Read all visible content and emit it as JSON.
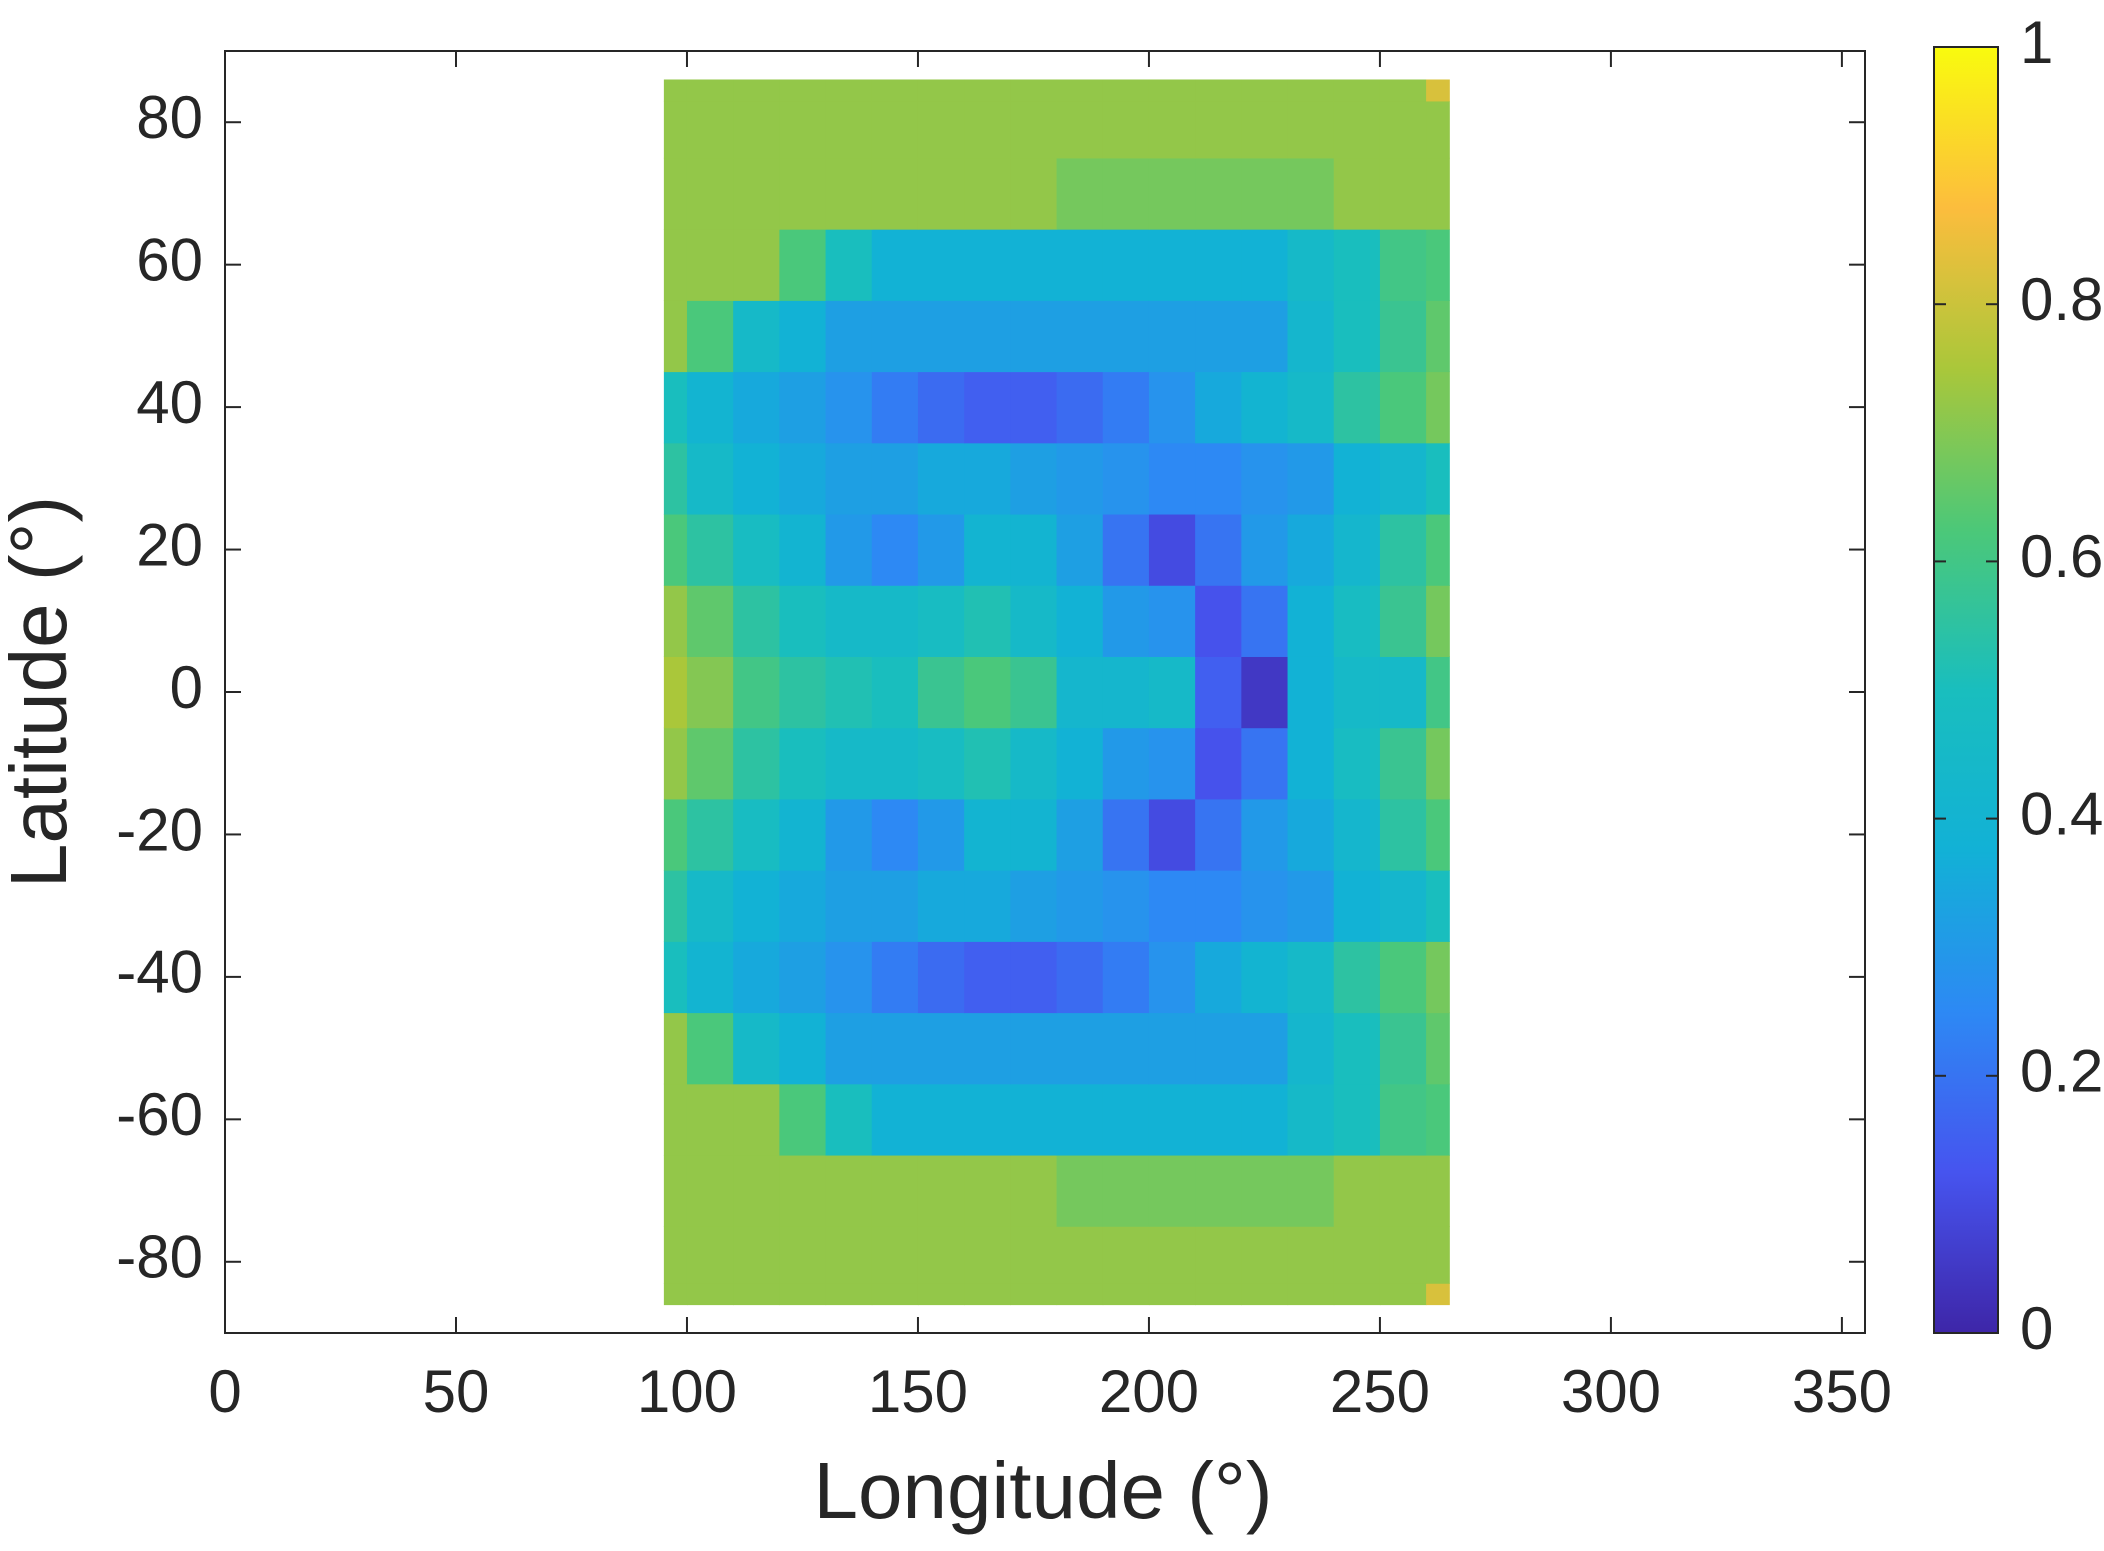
{
  "chart_data": {
    "type": "contourf",
    "xlabel": "Longitude (°)",
    "ylabel": "Latitude (°)",
    "x": [
      95,
      105,
      115,
      125,
      135,
      145,
      155,
      165,
      175,
      185,
      195,
      205,
      215,
      225,
      235,
      245,
      255,
      265
    ],
    "y": [
      -86,
      -80,
      -70,
      -60,
      -50,
      -40,
      -30,
      -20,
      -10,
      0,
      10,
      20,
      30,
      40,
      50,
      60,
      70,
      80,
      86
    ],
    "z": [
      [
        0.72,
        0.72,
        0.72,
        0.72,
        0.72,
        0.72,
        0.72,
        0.72,
        0.72,
        0.72,
        0.72,
        0.72,
        0.72,
        0.72,
        0.72,
        0.72,
        0.72,
        0.82
      ],
      [
        0.72,
        0.72,
        0.72,
        0.72,
        0.72,
        0.72,
        0.72,
        0.72,
        0.72,
        0.72,
        0.72,
        0.72,
        0.72,
        0.72,
        0.72,
        0.72,
        0.72,
        0.72
      ],
      [
        0.72,
        0.72,
        0.72,
        0.72,
        0.72,
        0.72,
        0.72,
        0.72,
        0.72,
        0.68,
        0.68,
        0.68,
        0.68,
        0.68,
        0.68,
        0.72,
        0.72,
        0.72
      ],
      [
        0.72,
        0.72,
        0.72,
        0.62,
        0.5,
        0.38,
        0.38,
        0.38,
        0.38,
        0.38,
        0.38,
        0.38,
        0.38,
        0.38,
        0.45,
        0.5,
        0.6,
        0.62
      ],
      [
        0.72,
        0.62,
        0.45,
        0.38,
        0.32,
        0.32,
        0.32,
        0.32,
        0.32,
        0.32,
        0.32,
        0.32,
        0.32,
        0.32,
        0.42,
        0.5,
        0.58,
        0.65
      ],
      [
        0.5,
        0.4,
        0.35,
        0.32,
        0.28,
        0.22,
        0.18,
        0.15,
        0.15,
        0.18,
        0.22,
        0.28,
        0.35,
        0.4,
        0.45,
        0.55,
        0.62,
        0.68
      ],
      [
        0.55,
        0.45,
        0.38,
        0.35,
        0.32,
        0.32,
        0.35,
        0.35,
        0.32,
        0.3,
        0.28,
        0.25,
        0.25,
        0.28,
        0.3,
        0.38,
        0.42,
        0.5
      ],
      [
        0.62,
        0.55,
        0.48,
        0.4,
        0.3,
        0.25,
        0.3,
        0.4,
        0.4,
        0.32,
        0.2,
        0.1,
        0.2,
        0.3,
        0.35,
        0.42,
        0.55,
        0.62
      ],
      [
        0.72,
        0.65,
        0.55,
        0.5,
        0.45,
        0.45,
        0.48,
        0.52,
        0.45,
        0.38,
        0.3,
        0.28,
        0.12,
        0.2,
        0.38,
        0.48,
        0.58,
        0.68
      ],
      [
        0.75,
        0.7,
        0.6,
        0.55,
        0.52,
        0.5,
        0.58,
        0.62,
        0.58,
        0.42,
        0.42,
        0.45,
        0.15,
        0.05,
        0.38,
        0.45,
        0.45,
        0.6
      ],
      [
        0.72,
        0.65,
        0.55,
        0.5,
        0.45,
        0.45,
        0.48,
        0.52,
        0.45,
        0.38,
        0.3,
        0.28,
        0.12,
        0.2,
        0.38,
        0.48,
        0.58,
        0.68
      ],
      [
        0.62,
        0.55,
        0.48,
        0.4,
        0.3,
        0.25,
        0.3,
        0.4,
        0.4,
        0.32,
        0.2,
        0.1,
        0.2,
        0.3,
        0.35,
        0.42,
        0.55,
        0.62
      ],
      [
        0.55,
        0.45,
        0.38,
        0.35,
        0.32,
        0.32,
        0.35,
        0.35,
        0.32,
        0.3,
        0.28,
        0.25,
        0.25,
        0.28,
        0.3,
        0.38,
        0.42,
        0.5
      ],
      [
        0.5,
        0.4,
        0.35,
        0.32,
        0.28,
        0.22,
        0.18,
        0.15,
        0.15,
        0.18,
        0.22,
        0.28,
        0.35,
        0.4,
        0.45,
        0.55,
        0.62,
        0.68
      ],
      [
        0.72,
        0.62,
        0.45,
        0.38,
        0.32,
        0.32,
        0.32,
        0.32,
        0.32,
        0.32,
        0.32,
        0.32,
        0.32,
        0.32,
        0.42,
        0.5,
        0.58,
        0.65
      ],
      [
        0.72,
        0.72,
        0.72,
        0.62,
        0.5,
        0.38,
        0.38,
        0.38,
        0.38,
        0.38,
        0.38,
        0.38,
        0.38,
        0.38,
        0.45,
        0.5,
        0.6,
        0.62
      ],
      [
        0.72,
        0.72,
        0.72,
        0.72,
        0.72,
        0.72,
        0.72,
        0.72,
        0.72,
        0.68,
        0.68,
        0.68,
        0.68,
        0.68,
        0.68,
        0.72,
        0.72,
        0.72
      ],
      [
        0.72,
        0.72,
        0.72,
        0.72,
        0.72,
        0.72,
        0.72,
        0.72,
        0.72,
        0.72,
        0.72,
        0.72,
        0.72,
        0.72,
        0.72,
        0.72,
        0.72,
        0.72
      ],
      [
        0.72,
        0.72,
        0.72,
        0.72,
        0.72,
        0.72,
        0.72,
        0.72,
        0.72,
        0.72,
        0.72,
        0.72,
        0.72,
        0.72,
        0.72,
        0.72,
        0.72,
        0.82
      ]
    ],
    "xlim": [
      0,
      355
    ],
    "xticks": [
      0,
      50,
      100,
      150,
      200,
      250,
      300,
      350
    ],
    "ylim": [
      -90,
      90
    ],
    "yticks": [
      -80,
      -60,
      -40,
      -20,
      0,
      20,
      40,
      60,
      80
    ],
    "clim": [
      0,
      1
    ],
    "cticks": [
      0,
      0.2,
      0.4,
      0.6,
      0.8,
      1
    ],
    "colormap": [
      "#3e26a8",
      "#4654ef",
      "#2d89f4",
      "#12b1d6",
      "#19bebe",
      "#4cc878",
      "#aac73a",
      "#fcbd3d",
      "#f9fb0e"
    ]
  }
}
